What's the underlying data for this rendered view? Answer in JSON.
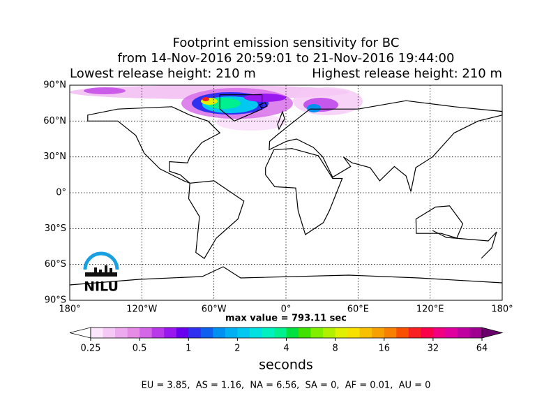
{
  "title_lines": [
    "Footprint emission sensitivity for BC",
    "from 14-Nov-2016 20:59:01 to 21-Nov-2016 19:44:00"
  ],
  "release_low": "Lowest release height: 210 m",
  "release_high": "Highest release height: 210 m",
  "map": {
    "xlim": [
      -180,
      180
    ],
    "ylim": [
      -90,
      90
    ],
    "xticks": [
      {
        "value": -180,
        "label": "180°"
      },
      {
        "value": -120,
        "label": "120°W"
      },
      {
        "value": -60,
        "label": "60°W"
      },
      {
        "value": 0,
        "label": "0°"
      },
      {
        "value": 60,
        "label": "60°E"
      },
      {
        "value": 120,
        "label": "120°E"
      },
      {
        "value": 180,
        "label": "180°"
      }
    ],
    "yticks": [
      {
        "value": 90,
        "label": "90°N"
      },
      {
        "value": 60,
        "label": "60°N"
      },
      {
        "value": 30,
        "label": "30°N"
      },
      {
        "value": 0,
        "label": "0°"
      },
      {
        "value": -30,
        "label": "30°S"
      },
      {
        "value": -60,
        "label": "60°S"
      },
      {
        "value": -90,
        "label": "90°S"
      }
    ],
    "grid": true
  },
  "max_value": "max value = 793.11 sec",
  "colorbar": {
    "label": "seconds",
    "scale": "log",
    "lim": [
      0.25,
      64
    ],
    "ticks": [
      0.25,
      0.5,
      1,
      2,
      4,
      8,
      16,
      32,
      64
    ],
    "colors": [
      "#fbe6fb",
      "#f5c8f5",
      "#eeaaee",
      "#e68ce6",
      "#d466e8",
      "#b838ea",
      "#9a18f0",
      "#6a00f0",
      "#3030f0",
      "#1060f0",
      "#0090f0",
      "#00b0f0",
      "#00c8f0",
      "#00e0e0",
      "#00f0c0",
      "#00f090",
      "#00e040",
      "#40e000",
      "#80f000",
      "#b0f000",
      "#e0f000",
      "#f8e000",
      "#f8c000",
      "#f8a000",
      "#f88000",
      "#f85000",
      "#f82020",
      "#f8004a",
      "#f00080",
      "#e000a0",
      "#c000a0",
      "#a00090"
    ],
    "under_color": "#ffffff",
    "over_color": "#6a006a"
  },
  "stats": "EU = 3.85,  AS = 1.16,  NA = 6.56,  SA = 0,  AF = 0.01,  AU = 0",
  "logo": "NILU"
}
